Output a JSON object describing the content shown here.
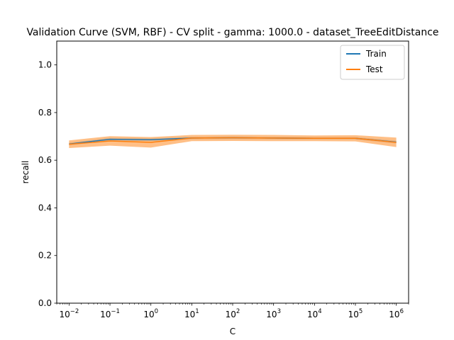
{
  "chart_data": {
    "type": "line",
    "title": "Validation Curve (SVM, RBF) - CV split - gamma: 1000.0 - dataset_TreeEditDistance",
    "xlabel": "C",
    "ylabel": "recall",
    "xscale": "log",
    "xlim": [
      0.005,
      2000000
    ],
    "ylim": [
      0.0,
      1.1
    ],
    "x": [
      0.01,
      0.1,
      1,
      10,
      100,
      1000,
      10000,
      100000,
      1000000
    ],
    "x_ticks": [
      0.01,
      0.1,
      1,
      10,
      100,
      1000,
      10000,
      100000,
      1000000
    ],
    "x_tick_labels": [
      {
        "base": "10",
        "exp": "−2"
      },
      {
        "base": "10",
        "exp": "−1"
      },
      {
        "base": "10",
        "exp": "0"
      },
      {
        "base": "10",
        "exp": "1"
      },
      {
        "base": "10",
        "exp": "2"
      },
      {
        "base": "10",
        "exp": "3"
      },
      {
        "base": "10",
        "exp": "4"
      },
      {
        "base": "10",
        "exp": "5"
      },
      {
        "base": "10",
        "exp": "6"
      }
    ],
    "y_ticks": [
      0.0,
      0.2,
      0.4,
      0.6,
      0.8,
      1.0
    ],
    "y_tick_labels": [
      "0.0",
      "0.2",
      "0.4",
      "0.6",
      "0.8",
      "1.0"
    ],
    "grid": false,
    "legend_position": "top-right",
    "series": [
      {
        "name": "Train",
        "color": "#1f77b4",
        "values": [
          0.668,
          0.688,
          0.686,
          0.693,
          0.694,
          0.693,
          0.692,
          0.692,
          0.676
        ],
        "std": [
          0.006,
          0.006,
          0.006,
          0.005,
          0.005,
          0.005,
          0.005,
          0.005,
          0.006
        ]
      },
      {
        "name": "Test",
        "color": "#ff7f0e",
        "values": [
          0.667,
          0.681,
          0.675,
          0.693,
          0.694,
          0.693,
          0.692,
          0.692,
          0.675
        ],
        "std": [
          0.016,
          0.02,
          0.022,
          0.013,
          0.013,
          0.013,
          0.012,
          0.013,
          0.02
        ]
      }
    ]
  }
}
